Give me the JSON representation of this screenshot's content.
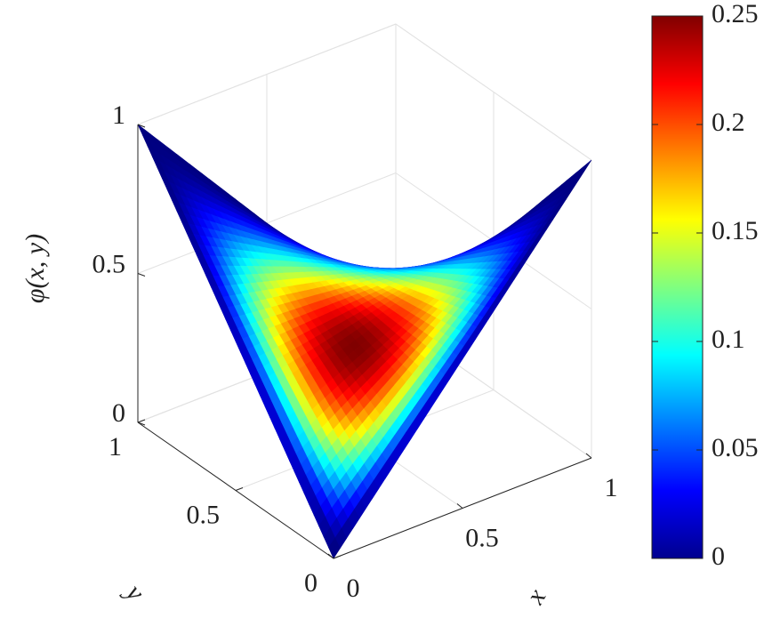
{
  "chart_data": {
    "type": "surface",
    "zlabel": "φ(x, y)",
    "xlabel": "x",
    "ylabel": "y",
    "xlim": [
      0,
      1
    ],
    "ylim": [
      0,
      1
    ],
    "zlim": [
      0,
      1
    ],
    "xticks": [
      0,
      0.5,
      1
    ],
    "yticks": [
      0,
      0.5,
      1
    ],
    "zticks": [
      0,
      0.5,
      1
    ],
    "clim": [
      0,
      0.25
    ],
    "cticks": [
      0,
      0.05,
      0.1,
      0.15,
      0.2,
      0.25
    ],
    "colormap": "jet",
    "grid": true
  }
}
